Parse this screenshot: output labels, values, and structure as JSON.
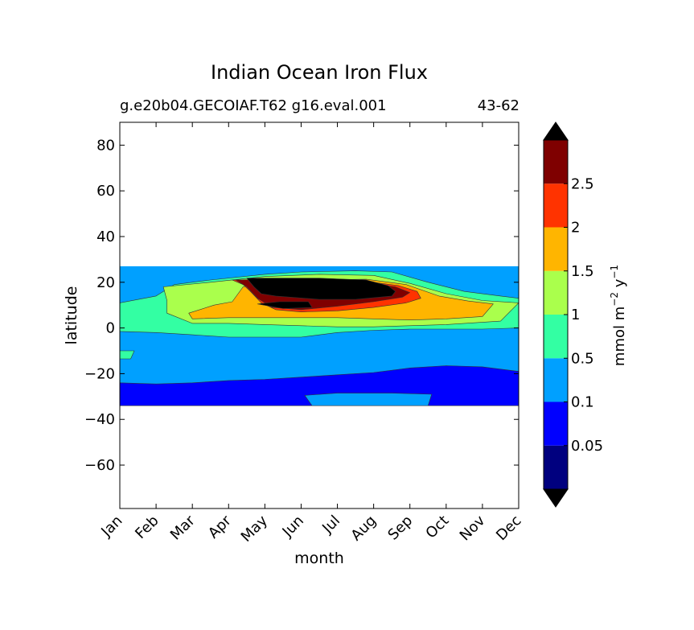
{
  "chart_data": {
    "type": "contourf",
    "title": "Indian Ocean Iron Flux",
    "subtitle_left": "g.e20b04.GECOIAF.T62 g16.eval.001",
    "subtitle_right": "43-62",
    "xlabel": "month",
    "ylabel": "latitude",
    "x_ticks": [
      "Jan",
      "Feb",
      "Mar",
      "Apr",
      "May",
      "Jun",
      "Jul",
      "Aug",
      "Sep",
      "Oct",
      "Nov",
      "Dec"
    ],
    "xlim": [
      0,
      11
    ],
    "ylim": [
      -79,
      90
    ],
    "y_ticks": [
      80,
      60,
      40,
      20,
      0,
      -20,
      -40,
      -60
    ],
    "y_tick_labels": [
      "80",
      "60",
      "40",
      "20",
      "0",
      "−20",
      "−40",
      "−60"
    ],
    "data_lat_range": [
      -34,
      27
    ],
    "colorbar": {
      "label_text": "mmol m",
      "label_sup1": "−2",
      "label_mid": "  y",
      "label_sup2": "−1",
      "levels": [
        0,
        0.05,
        0.1,
        0.5,
        1,
        1.5,
        2,
        2.5,
        3
      ],
      "tick_labels": [
        "0.05",
        "0.1",
        "0.5",
        "1",
        "1.5",
        "2",
        "2.5"
      ],
      "colors": [
        "#00007f",
        "#0000ff",
        "#00a0ff",
        "#33ffa3",
        "#aaff4c",
        "#ffb500",
        "#ff3300",
        "#7f0000"
      ],
      "extend_min_color": "#000000",
      "extend_max_color": "#000000"
    },
    "regions": [
      {
        "level": "0.05-0.1",
        "color": "#0000ff",
        "points": [
          [
            0,
            -24
          ],
          [
            1,
            -24.5
          ],
          [
            2,
            -24
          ],
          [
            3,
            -23
          ],
          [
            4,
            -22.5
          ],
          [
            5,
            -21.5
          ],
          [
            6,
            -20.5
          ],
          [
            7,
            -19.5
          ],
          [
            8,
            -17.5
          ],
          [
            9,
            -16.5
          ],
          [
            10,
            -17
          ],
          [
            11,
            -19
          ],
          [
            11,
            -34
          ],
          [
            0,
            -34
          ]
        ]
      },
      {
        "level": "0.1-0.5",
        "color": "#00a0ff",
        "points": [
          [
            5.3,
            -34
          ],
          [
            5.1,
            -29.5
          ],
          [
            6,
            -28.5
          ],
          [
            7.5,
            -28.5
          ],
          [
            8.6,
            -29
          ],
          [
            8.5,
            -34
          ]
        ]
      },
      {
        "level": "0.5-1",
        "color": "#33ffa3",
        "points": [
          [
            0,
            11
          ],
          [
            1,
            14
          ],
          [
            1.5,
            19
          ],
          [
            2.5,
            21
          ],
          [
            4,
            23.5
          ],
          [
            5,
            24.5
          ],
          [
            6.5,
            25
          ],
          [
            7.5,
            24.5
          ],
          [
            8.5,
            20
          ],
          [
            9.5,
            16
          ],
          [
            10.5,
            14
          ],
          [
            11,
            13
          ],
          [
            11,
            0
          ],
          [
            10,
            -0.5
          ],
          [
            9,
            -0.5
          ],
          [
            8,
            -0.5
          ],
          [
            7,
            -1
          ],
          [
            6,
            -2
          ],
          [
            5,
            -4
          ],
          [
            4,
            -4
          ],
          [
            3,
            -4
          ],
          [
            2,
            -3
          ],
          [
            1,
            -2
          ],
          [
            0,
            -1.5
          ]
        ]
      },
      {
        "level": "0.5-1 (patch)",
        "color": "#33ffa3",
        "points": [
          [
            0,
            -10
          ],
          [
            0.4,
            -10
          ],
          [
            0.3,
            -13.5
          ],
          [
            0,
            -13.5
          ]
        ]
      },
      {
        "level": "1-1.5",
        "color": "#aaff4c",
        "points": [
          [
            1.2,
            18
          ],
          [
            2.5,
            20
          ],
          [
            4,
            22.5
          ],
          [
            5.5,
            23.5
          ],
          [
            7,
            23
          ],
          [
            8,
            19.5
          ],
          [
            9,
            15
          ],
          [
            10,
            12
          ],
          [
            11,
            11
          ],
          [
            10.5,
            3
          ],
          [
            9,
            1.5
          ],
          [
            8,
            1
          ],
          [
            7,
            0.5
          ],
          [
            6,
            0.5
          ],
          [
            5,
            1
          ],
          [
            4,
            1.5
          ],
          [
            3,
            2
          ],
          [
            2,
            2
          ],
          [
            1.3,
            6.5
          ],
          [
            1.3,
            12
          ]
        ]
      },
      {
        "level": "1.5-2",
        "color": "#ffb500",
        "points": [
          [
            2.6,
            10
          ],
          [
            3.1,
            11.5
          ],
          [
            3.4,
            18
          ],
          [
            4,
            20
          ],
          [
            5,
            21
          ],
          [
            6.8,
            21.3
          ],
          [
            7.9,
            19
          ],
          [
            8.8,
            14
          ],
          [
            9.6,
            11.8
          ],
          [
            10.3,
            10.5
          ],
          [
            10,
            5
          ],
          [
            9,
            4
          ],
          [
            8,
            3.5
          ],
          [
            7,
            4
          ],
          [
            6,
            4.5
          ],
          [
            5,
            4.5
          ],
          [
            4,
            4.5
          ],
          [
            3,
            4.5
          ],
          [
            2,
            4
          ],
          [
            1.9,
            6.5
          ]
        ]
      },
      {
        "level": "2-2.5",
        "color": "#ff3300",
        "points": [
          [
            3.1,
            21
          ],
          [
            3.4,
            19
          ],
          [
            3.6,
            16
          ],
          [
            3.9,
            11
          ],
          [
            4.3,
            8
          ],
          [
            5,
            7
          ],
          [
            6,
            7.5
          ],
          [
            7,
            9
          ],
          [
            7.9,
            11
          ],
          [
            8.3,
            13
          ],
          [
            8.2,
            16
          ],
          [
            7.7,
            18.5
          ],
          [
            6.5,
            21
          ],
          [
            5,
            21.5
          ]
        ]
      },
      {
        "level": "2.5-3",
        "color": "#7f0000",
        "points": [
          [
            3.2,
            21
          ],
          [
            3.5,
            18
          ],
          [
            3.8,
            13
          ],
          [
            4.2,
            9
          ],
          [
            5,
            8
          ],
          [
            6,
            9.5
          ],
          [
            7,
            11.5
          ],
          [
            7.8,
            13.5
          ],
          [
            8,
            15.5
          ],
          [
            7.6,
            18
          ],
          [
            6.5,
            20.5
          ],
          [
            5,
            21.5
          ]
        ]
      },
      {
        "level": ">3",
        "color": "#000000",
        "points": [
          [
            3.5,
            21.8
          ],
          [
            3.7,
            18
          ],
          [
            3.9,
            15
          ],
          [
            4.3,
            14
          ],
          [
            5.5,
            12.5
          ],
          [
            6.5,
            12.5
          ],
          [
            7.5,
            14
          ],
          [
            7.6,
            16
          ],
          [
            7.4,
            18.5
          ],
          [
            6.8,
            21
          ],
          [
            5.5,
            21.8
          ]
        ]
      },
      {
        "level": ">3 (patch)",
        "color": "#000000",
        "points": [
          [
            3.8,
            10.5
          ],
          [
            4.4,
            11.5
          ],
          [
            5.2,
            11.5
          ],
          [
            5.3,
            9
          ],
          [
            4.5,
            8.5
          ]
        ]
      }
    ]
  }
}
